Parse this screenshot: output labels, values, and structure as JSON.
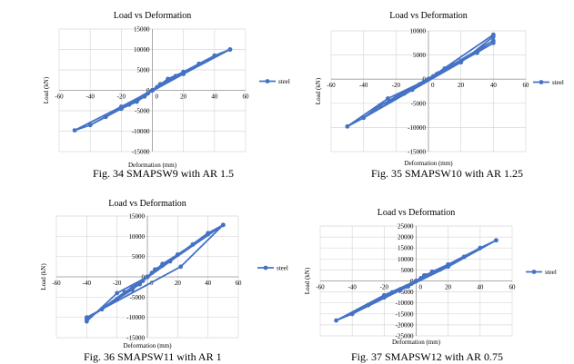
{
  "chart_data": [
    {
      "type": "scatter",
      "title": "Load vs Deformation",
      "xlabel": "Deformation (mm)",
      "ylabel": "Load (kN)",
      "xlim": [
        -60,
        60
      ],
      "ylim": [
        -15000,
        15000
      ],
      "xticks": [
        -60,
        -40,
        -20,
        0,
        20,
        40,
        60
      ],
      "yticks": [
        -15000,
        -10000,
        -5000,
        0,
        5000,
        10000,
        15000
      ],
      "grid": true,
      "legend": "right",
      "color": "#4472c4",
      "caption": "Fig. 34 SMAPSW9 with AR 1.5",
      "series": [
        {
          "name": "steel",
          "x": [
            0,
            5,
            10,
            3,
            -5,
            -10,
            -3,
            0,
            10,
            20,
            6,
            -10,
            -20,
            -6,
            0,
            20,
            30,
            10,
            -20,
            -30,
            -10,
            0,
            30,
            40,
            15,
            -30,
            -40,
            -15,
            0,
            40,
            50,
            20,
            -40,
            -50,
            -20,
            0,
            50
          ],
          "y": [
            0,
            1500,
            2500,
            800,
            -1500,
            -2500,
            -800,
            0,
            2800,
            4500,
            1500,
            -2800,
            -4500,
            -1500,
            0,
            4500,
            6500,
            2500,
            -4500,
            -6500,
            -2500,
            0,
            6500,
            8500,
            3500,
            -6500,
            -8500,
            -3500,
            0,
            8500,
            10000,
            4000,
            -8500,
            -9800,
            -4000,
            0,
            10000
          ]
        }
      ]
    },
    {
      "type": "scatter",
      "title": "Load vs Deformation",
      "xlabel": "Deformation (mm)",
      "ylabel": "Load (kN)",
      "xlim": [
        -60,
        60
      ],
      "ylim": [
        -15000,
        10000
      ],
      "xticks": [
        -60,
        -40,
        -20,
        0,
        20,
        40,
        60
      ],
      "yticks": [
        -15000,
        -10000,
        -5000,
        0,
        5000,
        10000
      ],
      "grid": true,
      "legend": "right",
      "color": "#4472c4",
      "caption": "Fig. 35 SMAPSW10 with AR 1.25",
      "series": [
        {
          "name": "steel",
          "x": [
            0,
            5,
            10,
            3,
            -5,
            -10,
            -3,
            0,
            10,
            20,
            6,
            -10,
            -20,
            -6,
            0,
            20,
            30,
            10,
            -20,
            -30,
            -10,
            0,
            30,
            40,
            15,
            -30,
            -40,
            -15,
            0,
            40,
            40,
            20,
            -40,
            -50,
            -25,
            0,
            40
          ],
          "y": [
            0,
            1000,
            2000,
            600,
            -1000,
            -2000,
            -600,
            0,
            2200,
            3500,
            1200,
            -2200,
            -3800,
            -1200,
            0,
            3800,
            5500,
            2000,
            -3800,
            -5500,
            -2000,
            0,
            5500,
            7500,
            3000,
            -5500,
            -8000,
            -3000,
            0,
            8000,
            8800,
            3500,
            -8000,
            -9800,
            -4000,
            0,
            9200
          ]
        }
      ]
    },
    {
      "type": "scatter",
      "title": "Load vs Deformation",
      "xlabel": "Deformation (mm)",
      "ylabel": "Load (kN)",
      "xlim": [
        -60,
        60
      ],
      "ylim": [
        -15000,
        15000
      ],
      "xticks": [
        -60,
        -40,
        -20,
        0,
        20,
        40,
        60
      ],
      "yticks": [
        -15000,
        -10000,
        -5000,
        0,
        5000,
        10000,
        15000
      ],
      "grid": true,
      "legend": "right",
      "color": "#4472c4",
      "caption": "Fig. 36 SMAPSW11 with AR 1",
      "series": [
        {
          "name": "steel",
          "x": [
            0,
            5,
            10,
            3,
            -5,
            -10,
            -3,
            0,
            10,
            20,
            6,
            -10,
            -20,
            -6,
            0,
            20,
            30,
            10,
            -20,
            -30,
            -10,
            0,
            30,
            40,
            15,
            -30,
            -40,
            -15,
            0,
            40,
            50,
            22,
            -40,
            -40,
            -20,
            0,
            50
          ],
          "y": [
            0,
            1800,
            3000,
            1000,
            -1800,
            -3000,
            -1000,
            0,
            3200,
            5500,
            1800,
            -3200,
            -5500,
            -1800,
            0,
            5500,
            8000,
            2800,
            -5500,
            -8000,
            -2800,
            0,
            8000,
            10500,
            3800,
            -8000,
            -10500,
            -3800,
            0,
            10800,
            12800,
            2500,
            -10000,
            -11000,
            -4000,
            0,
            12800
          ]
        }
      ]
    },
    {
      "type": "scatter",
      "title": "Load vs Deformation",
      "xlabel": "Deformation (mm)",
      "ylabel": "Load (kN)",
      "xlim": [
        -60,
        60
      ],
      "ylim": [
        -25000,
        25000
      ],
      "xticks": [
        -60,
        -40,
        -20,
        0,
        20,
        40,
        60
      ],
      "yticks": [
        -25000,
        -20000,
        -15000,
        -10000,
        -5000,
        0,
        5000,
        10000,
        15000,
        20000,
        25000
      ],
      "grid": true,
      "legend": "right",
      "color": "#4472c4",
      "caption": "Fig. 37 SMAPSW12 with AR 0.75",
      "series": [
        {
          "name": "steel",
          "x": [
            0,
            5,
            10,
            3,
            -5,
            -10,
            -3,
            0,
            10,
            20,
            6,
            -10,
            -20,
            -6,
            0,
            20,
            30,
            10,
            -20,
            -30,
            -10,
            0,
            30,
            40,
            15,
            -30,
            -40,
            -15,
            0,
            40,
            50,
            20,
            -40,
            -50,
            -20,
            0,
            50
          ],
          "y": [
            0,
            2500,
            4000,
            1300,
            -2500,
            -4000,
            -1300,
            0,
            4200,
            7500,
            2500,
            -4200,
            -7500,
            -2500,
            0,
            7500,
            11000,
            3800,
            -7500,
            -11000,
            -3800,
            0,
            11000,
            15000,
            5200,
            -11000,
            -15000,
            -5200,
            0,
            15000,
            18500,
            6500,
            -15000,
            -18000,
            -6500,
            0,
            18500
          ]
        }
      ]
    }
  ]
}
